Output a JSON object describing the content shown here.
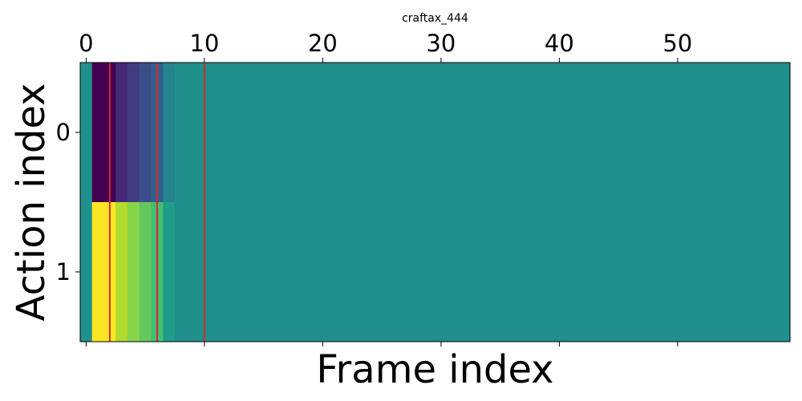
{
  "chart_data": {
    "type": "heatmap",
    "title": "craftax_444",
    "xlabel": "Frame index",
    "ylabel": "Action index",
    "x_ticks": [
      0,
      10,
      20,
      30,
      40,
      50
    ],
    "y_ticks": [
      0,
      1
    ],
    "x_tick_position": "top",
    "xlim": [
      -0.5,
      59.5
    ],
    "ylim": [
      -0.5,
      1.5
    ],
    "colormap": "viridis",
    "grid": false,
    "rows": [
      {
        "action_index": 0,
        "values": [
          0.5,
          0.0,
          0.0,
          0.12,
          0.18,
          0.24,
          0.3,
          0.45,
          0.5,
          0.5,
          0.5,
          0.5,
          0.5,
          0.5,
          0.5,
          0.5,
          0.5,
          0.5,
          0.5,
          0.5,
          0.5,
          0.5,
          0.5,
          0.5,
          0.5,
          0.5,
          0.5,
          0.5,
          0.5,
          0.5,
          0.5,
          0.5,
          0.5,
          0.5,
          0.5,
          0.5,
          0.5,
          0.5,
          0.5,
          0.5,
          0.5,
          0.5,
          0.5,
          0.5,
          0.5,
          0.5,
          0.5,
          0.5,
          0.5,
          0.5,
          0.5,
          0.5,
          0.5,
          0.5,
          0.5,
          0.5,
          0.5,
          0.5,
          0.5,
          0.5
        ]
      },
      {
        "action_index": 1,
        "values": [
          0.5,
          1.0,
          1.0,
          0.88,
          0.82,
          0.76,
          0.7,
          0.55,
          0.5,
          0.5,
          0.5,
          0.5,
          0.5,
          0.5,
          0.5,
          0.5,
          0.5,
          0.5,
          0.5,
          0.5,
          0.5,
          0.5,
          0.5,
          0.5,
          0.5,
          0.5,
          0.5,
          0.5,
          0.5,
          0.5,
          0.5,
          0.5,
          0.5,
          0.5,
          0.5,
          0.5,
          0.5,
          0.5,
          0.5,
          0.5,
          0.5,
          0.5,
          0.5,
          0.5,
          0.5,
          0.5,
          0.5,
          0.5,
          0.5,
          0.5,
          0.5,
          0.5,
          0.5,
          0.5,
          0.5,
          0.5,
          0.5,
          0.5,
          0.5,
          0.5
        ]
      }
    ],
    "vertical_lines": {
      "color": "#d62728",
      "x": [
        2,
        6,
        10
      ]
    }
  }
}
